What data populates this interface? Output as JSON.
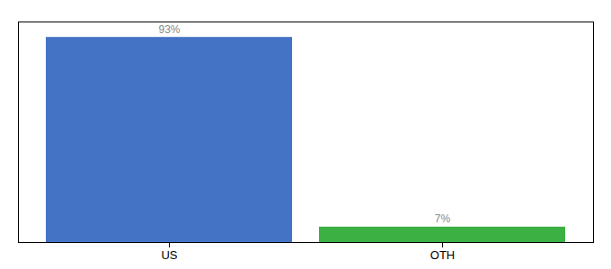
{
  "chart_data": {
    "type": "bar",
    "categories": [
      "US",
      "OTH"
    ],
    "values": [
      93,
      7
    ],
    "value_labels": [
      "93%",
      "7%"
    ],
    "colors": [
      "#4472c4",
      "#3cb043"
    ],
    "ylim": [
      0,
      100
    ],
    "grid": false,
    "data_labels": true,
    "tick_labels": "x"
  }
}
